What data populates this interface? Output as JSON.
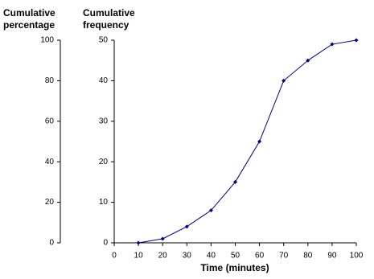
{
  "chart_data": {
    "type": "line",
    "xlabel": "Time (minutes)",
    "ylabel": "Cumulative frequency",
    "y2label": "Cumulative percentage",
    "x": [
      10,
      20,
      30,
      40,
      50,
      60,
      70,
      80,
      90,
      100
    ],
    "series": [
      {
        "name": "Cumulative frequency",
        "color": "#000080",
        "values": [
          0,
          1,
          4,
          8,
          15,
          25,
          40,
          45,
          49,
          50
        ]
      }
    ],
    "xlim": [
      0,
      100
    ],
    "xticks": [
      0,
      10,
      20,
      30,
      40,
      50,
      60,
      70,
      80,
      90,
      100
    ],
    "ylim": [
      0,
      50
    ],
    "yticks": [
      0,
      10,
      20,
      30,
      40,
      50
    ],
    "y2lim": [
      0,
      100
    ],
    "y2ticks": [
      0,
      20,
      40,
      60,
      80,
      100
    ],
    "grid": false
  }
}
